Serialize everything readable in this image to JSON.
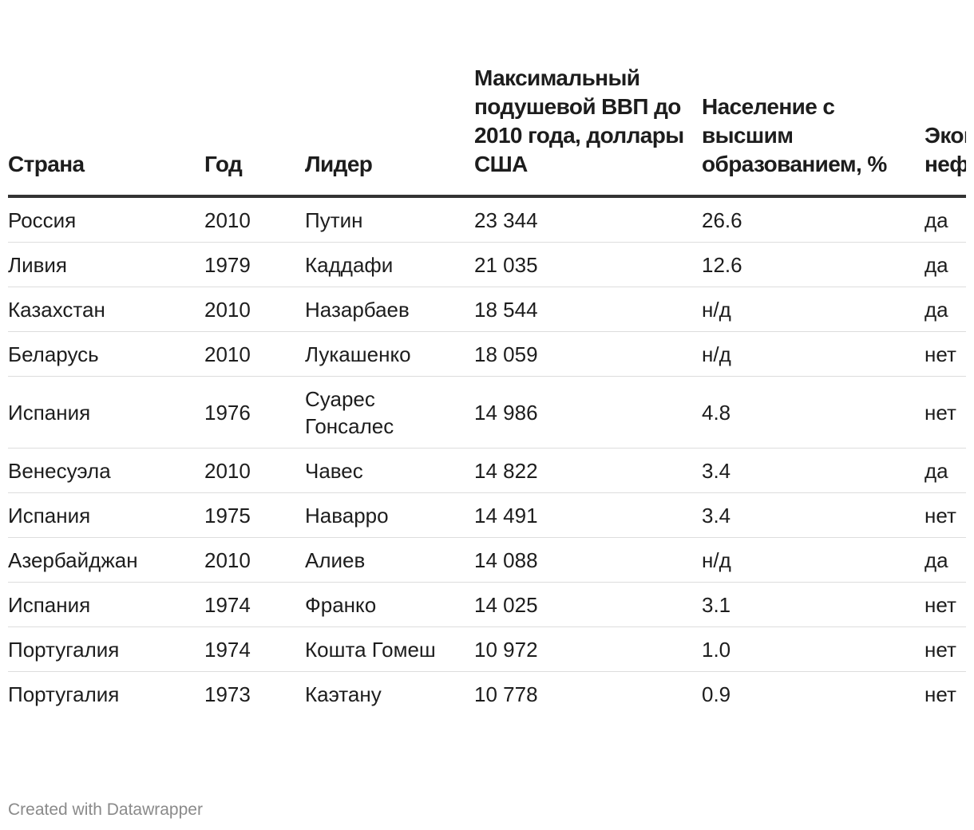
{
  "chart_data": {
    "type": "table",
    "columns": [
      "Страна",
      "Год",
      "Лидер",
      "Максимальный подушевой ВВП до 2010 года, доллары США",
      "Население с высшим образованием, %",
      "Экономика нефтяная"
    ],
    "rows": [
      {
        "country": "Россия",
        "year": "2010",
        "leader": "Путин",
        "gdp": "23 344",
        "edu": "26.6",
        "oil": "да"
      },
      {
        "country": "Ливия",
        "year": "1979",
        "leader": "Каддафи",
        "gdp": "21 035",
        "edu": "12.6",
        "oil": "да"
      },
      {
        "country": "Казахстан",
        "year": "2010",
        "leader": "Назарбаев",
        "gdp": "18 544",
        "edu": "н/д",
        "oil": "да"
      },
      {
        "country": "Беларусь",
        "year": "2010",
        "leader": "Лукашенко",
        "gdp": "18 059",
        "edu": "н/д",
        "oil": "нет"
      },
      {
        "country": "Испания",
        "year": "1976",
        "leader": "Суарес Гонсалес",
        "gdp": "14 986",
        "edu": "4.8",
        "oil": "нет"
      },
      {
        "country": "Венесуэла",
        "year": "2010",
        "leader": "Чавес",
        "gdp": "14 822",
        "edu": "3.4",
        "oil": "да"
      },
      {
        "country": "Испания",
        "year": "1975",
        "leader": "Наварро",
        "gdp": "14 491",
        "edu": "3.4",
        "oil": "нет"
      },
      {
        "country": "Азербайджан",
        "year": "2010",
        "leader": "Алиев",
        "gdp": "14 088",
        "edu": "н/д",
        "oil": "да"
      },
      {
        "country": "Испания",
        "year": "1974",
        "leader": "Франко",
        "gdp": "14 025",
        "edu": "3.1",
        "oil": "нет"
      },
      {
        "country": "Португалия",
        "year": "1974",
        "leader": "Кошта Гомеш",
        "gdp": "10 972",
        "edu": "1.0",
        "oil": "нет"
      },
      {
        "country": "Португалия",
        "year": "1973",
        "leader": "Каэтану",
        "gdp": "10 778",
        "edu": "0.9",
        "oil": "нет"
      }
    ]
  },
  "footer": {
    "credit": "Created with Datawrapper"
  }
}
